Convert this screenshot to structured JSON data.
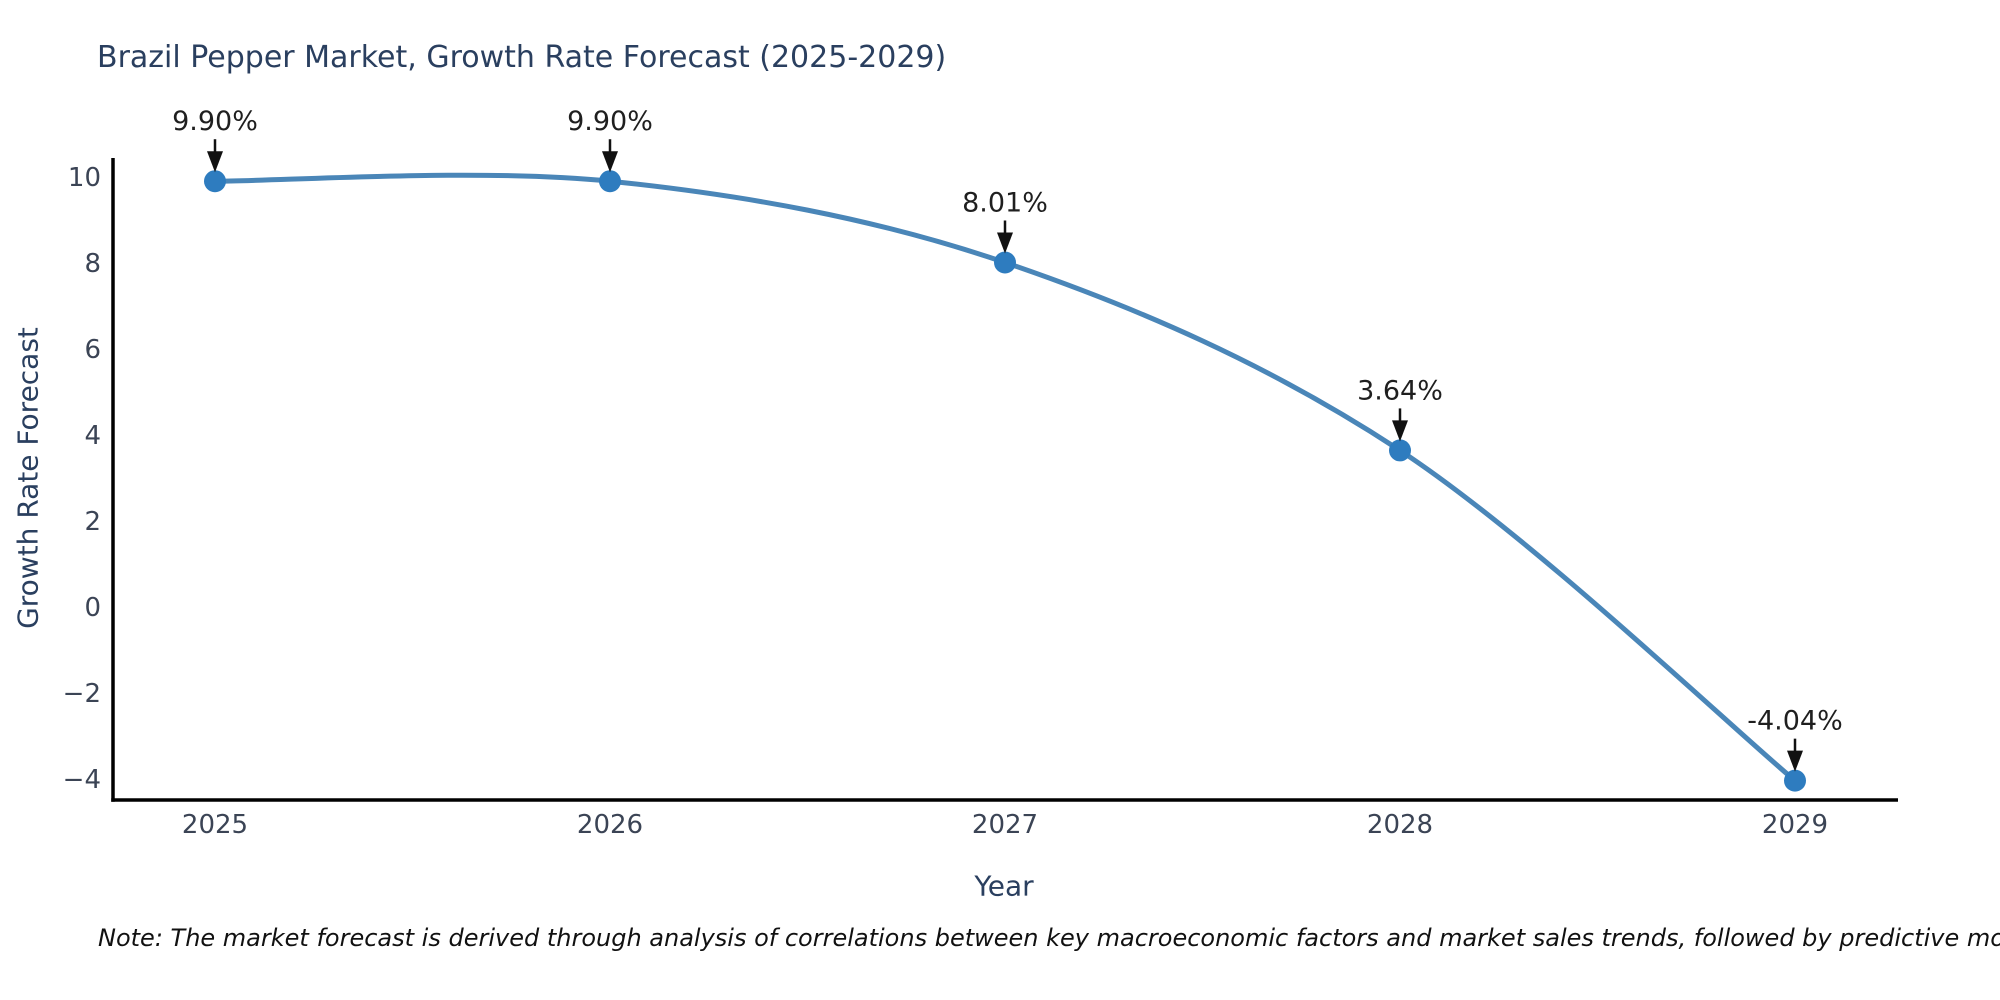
{
  "chart_data": {
    "type": "line",
    "title": "Brazil Pepper Market, Growth Rate Forecast (2025-2029)",
    "xlabel": "Year",
    "ylabel": "Growth Rate Forecast",
    "x": [
      2025,
      2026,
      2027,
      2028,
      2029
    ],
    "series": [
      {
        "name": "Growth Rate Forecast",
        "values": [
          9.9,
          9.9,
          8.01,
          3.64,
          -4.04
        ]
      }
    ],
    "point_labels": [
      "9.90%",
      "9.90%",
      "8.01%",
      "3.64%",
      "-4.04%"
    ],
    "xtick_labels": [
      "2025",
      "2026",
      "2027",
      "2028",
      "2029"
    ],
    "ytick_values": [
      10,
      8,
      6,
      4,
      2,
      0,
      -2,
      -4
    ],
    "ytick_labels": [
      "10",
      "8",
      "6",
      "4",
      "2",
      "0",
      "−2",
      "−4"
    ],
    "ylim": [
      -4.49,
      10.44
    ],
    "grid": false,
    "legend": false,
    "line_shape": "spline",
    "marker": "circle",
    "annotation_style": "label-above-with-down-arrow",
    "colors": {
      "line": "#4a86b8",
      "marker": "#2e7cbf",
      "axis": "#000000",
      "title_text": "#2a3f5f",
      "tick_text": "#3b4455",
      "annotation_text": "#1f1f1f",
      "arrow": "#111111",
      "background": "#ffffff"
    },
    "note": "Note: The market forecast is derived through analysis of correlations between key macroeconomic factors and market sales trends, followed by predictive modeling to project future sales"
  }
}
